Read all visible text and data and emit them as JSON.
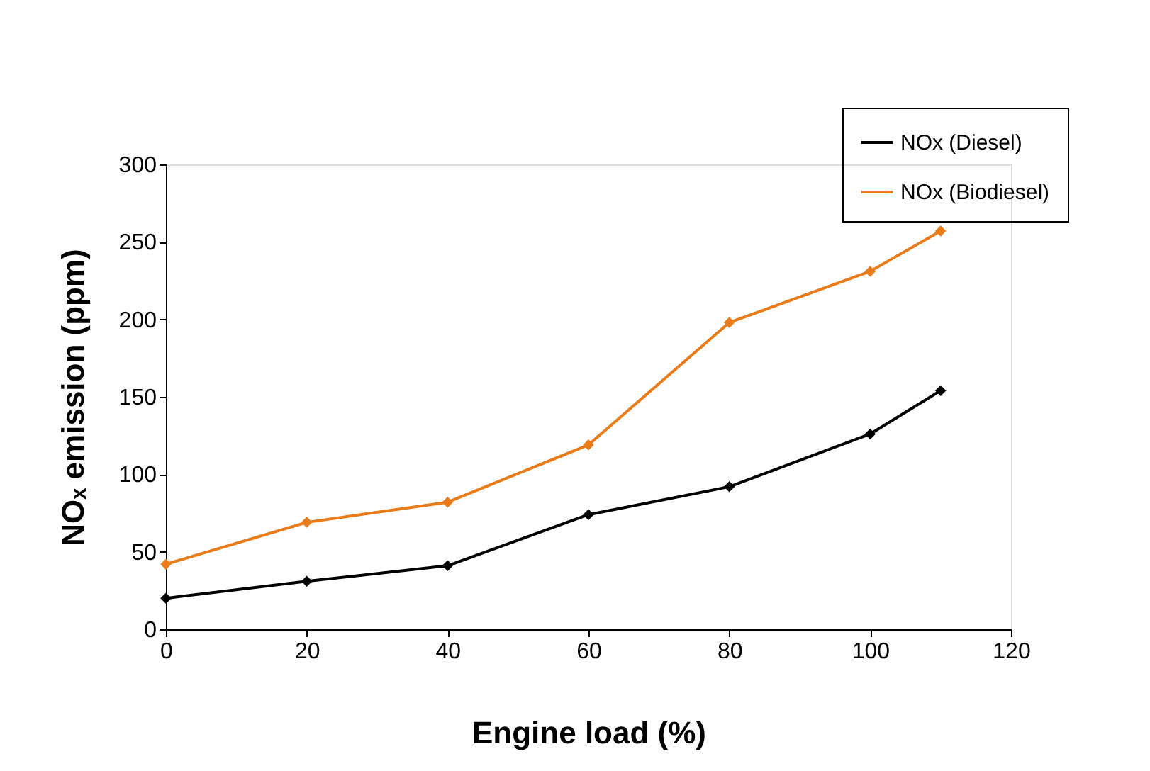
{
  "chart_data": {
    "type": "line",
    "xlabel": "Engine load (%)",
    "ylabel": "NOₓ emission (ppm)",
    "x": [
      0,
      20,
      40,
      60,
      80,
      100,
      110
    ],
    "series": [
      {
        "name": "NOx (Diesel)",
        "color": "#000000",
        "values": [
          20,
          31,
          41,
          74,
          92,
          126,
          154
        ]
      },
      {
        "name": "NOx (Biodiesel)",
        "color": "#e97b18",
        "values": [
          42,
          69,
          82,
          119,
          198,
          231,
          257
        ]
      }
    ],
    "xlim": [
      0,
      120
    ],
    "xticks": [
      0,
      20,
      40,
      60,
      80,
      100,
      120
    ],
    "ylim": [
      0,
      300
    ],
    "yticks": [
      0,
      50,
      100,
      150,
      200,
      250,
      300
    ],
    "grid": false,
    "legend": "top right",
    "marker": "diamond",
    "line_style": "solid"
  }
}
